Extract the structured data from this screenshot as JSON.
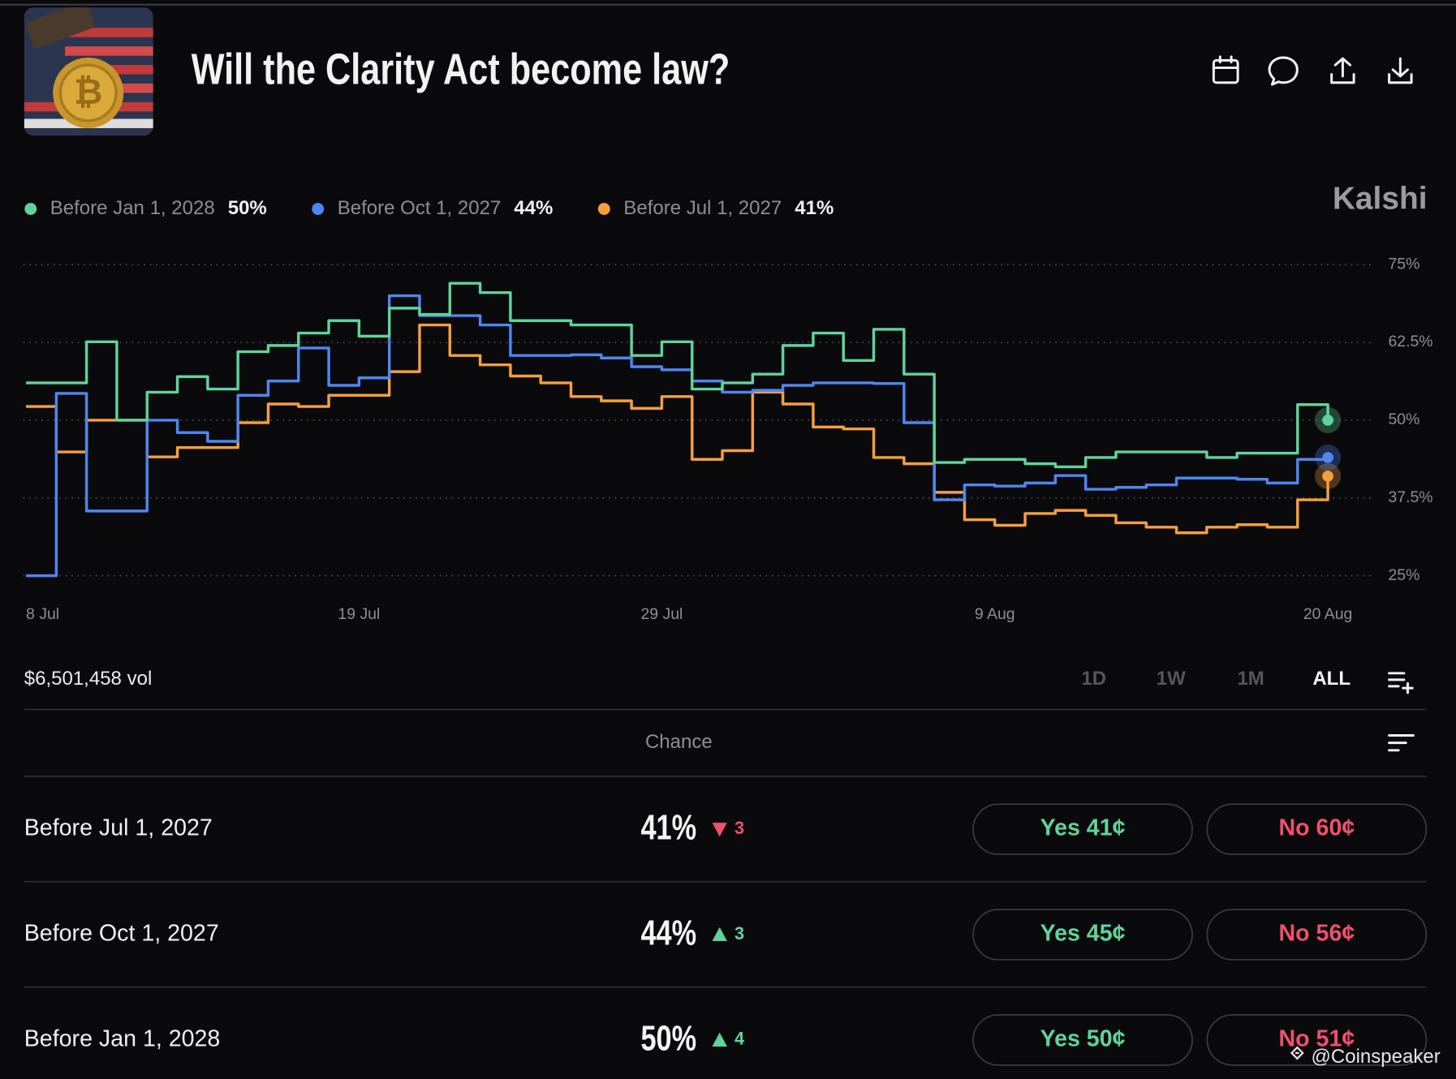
{
  "header": {
    "title": "Will the Clarity Act become law?",
    "brand": "Kalshi"
  },
  "chart_data": {
    "type": "line",
    "step": true,
    "categories": [
      "8 Jul",
      "9 Jul",
      "10 Jul",
      "11 Jul",
      "12 Jul",
      "13 Jul",
      "14 Jul",
      "15 Jul",
      "16 Jul",
      "17 Jul",
      "18 Jul",
      "19 Jul",
      "20 Jul",
      "21 Jul",
      "22 Jul",
      "23 Jul",
      "24 Jul",
      "25 Jul",
      "26 Jul",
      "27 Jul",
      "28 Jul",
      "29 Jul",
      "30 Jul",
      "31 Jul",
      "1 Aug",
      "2 Aug",
      "3 Aug",
      "4 Aug",
      "5 Aug",
      "6 Aug",
      "7 Aug",
      "8 Aug",
      "9 Aug",
      "10 Aug",
      "11 Aug",
      "12 Aug",
      "13 Aug",
      "14 Aug",
      "15 Aug",
      "16 Aug",
      "17 Aug",
      "18 Aug",
      "19 Aug",
      "20 Aug"
    ],
    "xticks": [
      "8 Jul",
      "19 Jul",
      "29 Jul",
      "9 Aug",
      "20 Aug"
    ],
    "series": [
      {
        "name": "Before Jan 1, 2028",
        "color": "#5fd49a",
        "last_label": "50%",
        "values": [
          56,
          56,
          62.6,
          50,
          54.5,
          57,
          55,
          61,
          62,
          64,
          66,
          63.5,
          68,
          67,
          72,
          70.5,
          66,
          66,
          65.3,
          65.3,
          60.4,
          62.6,
          55,
          56,
          57.4,
          62,
          64,
          59.6,
          64.6,
          57.4,
          43.2,
          43.7,
          43.7,
          43,
          42.5,
          44,
          44.9,
          44.9,
          44.9,
          44,
          44.7,
          44.7,
          52.5,
          50
        ]
      },
      {
        "name": "Before Oct 1, 2027",
        "color": "#4f86f0",
        "last_label": "44%",
        "values": [
          25,
          54.3,
          35.4,
          35.4,
          50,
          48,
          46.6,
          54,
          56.3,
          61.6,
          55.6,
          56.8,
          70,
          66.8,
          66.8,
          65.3,
          60.4,
          60.4,
          60.5,
          60,
          58.6,
          58.1,
          56.3,
          54.5,
          54.8,
          55.6,
          56,
          56,
          55.9,
          49.6,
          37.2,
          39.6,
          39.4,
          39.9,
          41.1,
          38.9,
          39.2,
          39.6,
          40.7,
          40.7,
          40.5,
          39.9,
          43.7,
          44
        ]
      },
      {
        "name": "Before Jul 1, 2027",
        "color": "#f5a03c",
        "last_label": "41%",
        "values": [
          52.2,
          44.9,
          50,
          50,
          44.1,
          45.6,
          45.6,
          49.6,
          52.6,
          52.2,
          54,
          54,
          57.8,
          65.3,
          60.4,
          58.9,
          57.1,
          56,
          53.8,
          53.1,
          51.9,
          53.8,
          43.7,
          45.1,
          54.5,
          52.6,
          48.9,
          48.6,
          44,
          43,
          38.4,
          34,
          33.1,
          35,
          35.5,
          34.7,
          33.5,
          32.8,
          31.9,
          32.8,
          33.2,
          32.8,
          37.2,
          41
        ]
      }
    ],
    "ylim": [
      25,
      75
    ],
    "yticks": [
      {
        "value": 25,
        "label": "25%"
      },
      {
        "value": 37.5,
        "label": "37.5%"
      },
      {
        "value": 50,
        "label": "50%"
      },
      {
        "value": 62.5,
        "label": "62.5%"
      },
      {
        "value": 75,
        "label": "75%"
      }
    ],
    "grid": true
  },
  "volume": "$6,501,458 vol",
  "ranges": [
    "1D",
    "1W",
    "1M",
    "ALL"
  ],
  "selected_range": "ALL",
  "table": {
    "column": "Chance",
    "rows": [
      {
        "name": "Before Jul 1, 2027",
        "chance": "41%",
        "change": "3",
        "direction": "down",
        "yes": "Yes 41¢",
        "no": "No 60¢"
      },
      {
        "name": "Before Oct 1, 2027",
        "chance": "44%",
        "change": "3",
        "direction": "up",
        "yes": "Yes 45¢",
        "no": "No 56¢"
      },
      {
        "name": "Before Jan 1, 2028",
        "chance": "50%",
        "change": "4",
        "direction": "up",
        "yes": "Yes 50¢",
        "no": "No 51¢"
      }
    ]
  },
  "watermark": "@Coinspeaker"
}
